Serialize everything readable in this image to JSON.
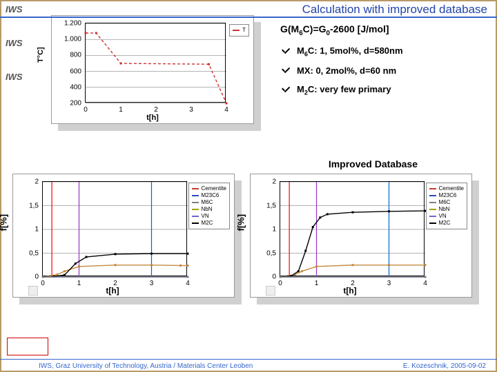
{
  "iws_label": "IWS",
  "iws_count": 3,
  "title": "Calculation with improved database",
  "formula_html": "G(M<span class='sub'>6</span>C)=G<span class='sub'>0</span>-2600 [J/mol]",
  "checks": [
    {
      "html": "M<span class='sub'>6</span>C: 1, 5mol%, d=580nm"
    },
    {
      "html": "MX: 0, 2mol%, d=60 nm"
    },
    {
      "html": "M<span class='sub'>2</span>C: very few primary"
    }
  ],
  "improved_label": "Improved Database",
  "footer_left": "IWS, Graz University of Technology, Austria / Materials Center Leoben",
  "footer_right": "E. Kozeschnik, 2005-09-02",
  "red_box_text": "",
  "top_chart": {
    "type": "line",
    "xlabel": "t[h]",
    "ylabel": "T°C]",
    "xlim": [
      0,
      4
    ],
    "ylim": [
      200,
      1200
    ],
    "ytick_step": 200,
    "x_ticks": [
      0,
      1,
      2,
      3,
      4
    ],
    "y_ticks": [
      200,
      400,
      600,
      800,
      1000,
      1200
    ],
    "y_tick_labels": [
      "200",
      "400",
      "600",
      "800",
      "1.000",
      "1.200"
    ],
    "background_color": "#ffffff",
    "series": [
      {
        "label": "T",
        "color": "#cc3333",
        "dash": "4 3",
        "x": [
          0,
          0.3,
          1.0,
          3.5,
          4.0
        ],
        "y": [
          1080,
          1080,
          700,
          690,
          200
        ]
      }
    ]
  },
  "bottom_charts_common": {
    "type": "line",
    "xlabel": "t[h]",
    "ylabel": "f[%]",
    "xlim": [
      0,
      4
    ],
    "ylim": [
      0,
      2
    ],
    "x_ticks": [
      0,
      1,
      2,
      3,
      4
    ],
    "y_ticks": [
      0,
      0.5,
      1,
      1.5,
      2
    ],
    "y_tick_labels": [
      "0",
      "0,5",
      "1",
      "1,5",
      "2"
    ],
    "legend": [
      {
        "label": "Cementite",
        "color": "#c43a2a"
      },
      {
        "label": "M23C6",
        "color": "#2b46c0"
      },
      {
        "label": "M6C",
        "color": "#7f7f7f"
      },
      {
        "label": "NbN",
        "color": "#a0a000"
      },
      {
        "label": "VN",
        "color": "#6a65d1"
      },
      {
        "label": "M2C",
        "color": "#000000"
      }
    ],
    "background_color": "#ffffff"
  },
  "bottom_left": {
    "series": [
      {
        "color": "#c48a40",
        "x": [
          0,
          0.2,
          0.4,
          0.6,
          1.0,
          2.0,
          3.0,
          3.8,
          4.0
        ],
        "y": [
          0,
          0.02,
          0.05,
          0.12,
          0.22,
          0.25,
          0.25,
          0.24,
          0.24
        ]
      },
      {
        "color": "#000000",
        "x": [
          0,
          0.3,
          0.6,
          0.9,
          1.2,
          2.0,
          3.0,
          4.0
        ],
        "y": [
          0,
          0.01,
          0.04,
          0.28,
          0.42,
          0.48,
          0.49,
          0.49
        ]
      },
      {
        "color": "#2b46c0",
        "x": [
          0,
          4
        ],
        "y": [
          0,
          0
        ]
      },
      {
        "color": "#7f7f7f",
        "x": [
          0,
          4
        ],
        "y": [
          0,
          0
        ]
      }
    ],
    "vlines": [
      {
        "x": 0.25,
        "color": "#ff0000"
      },
      {
        "x": 1.0,
        "color": "#9933cc"
      },
      {
        "x": 3.0,
        "color": "#0066cc"
      }
    ]
  },
  "bottom_right": {
    "series": [
      {
        "color": "#c48a40",
        "x": [
          0,
          0.2,
          0.4,
          0.6,
          1.0,
          2.0,
          3.0,
          4.0
        ],
        "y": [
          0,
          0.02,
          0.05,
          0.12,
          0.22,
          0.25,
          0.25,
          0.25
        ]
      },
      {
        "color": "#000000",
        "x": [
          0,
          0.3,
          0.5,
          0.7,
          0.9,
          1.1,
          1.3,
          2.0,
          3.0,
          4.0
        ],
        "y": [
          0,
          0.02,
          0.12,
          0.55,
          1.05,
          1.25,
          1.32,
          1.36,
          1.38,
          1.39
        ]
      },
      {
        "color": "#2b46c0",
        "x": [
          0,
          4
        ],
        "y": [
          0,
          0
        ]
      },
      {
        "color": "#7f7f7f",
        "x": [
          0,
          4
        ],
        "y": [
          0,
          0
        ]
      }
    ],
    "vlines": [
      {
        "x": 0.25,
        "color": "#ff0000"
      },
      {
        "x": 1.0,
        "color": "#9933cc"
      },
      {
        "x": 3.0,
        "color": "#0066cc"
      }
    ]
  }
}
